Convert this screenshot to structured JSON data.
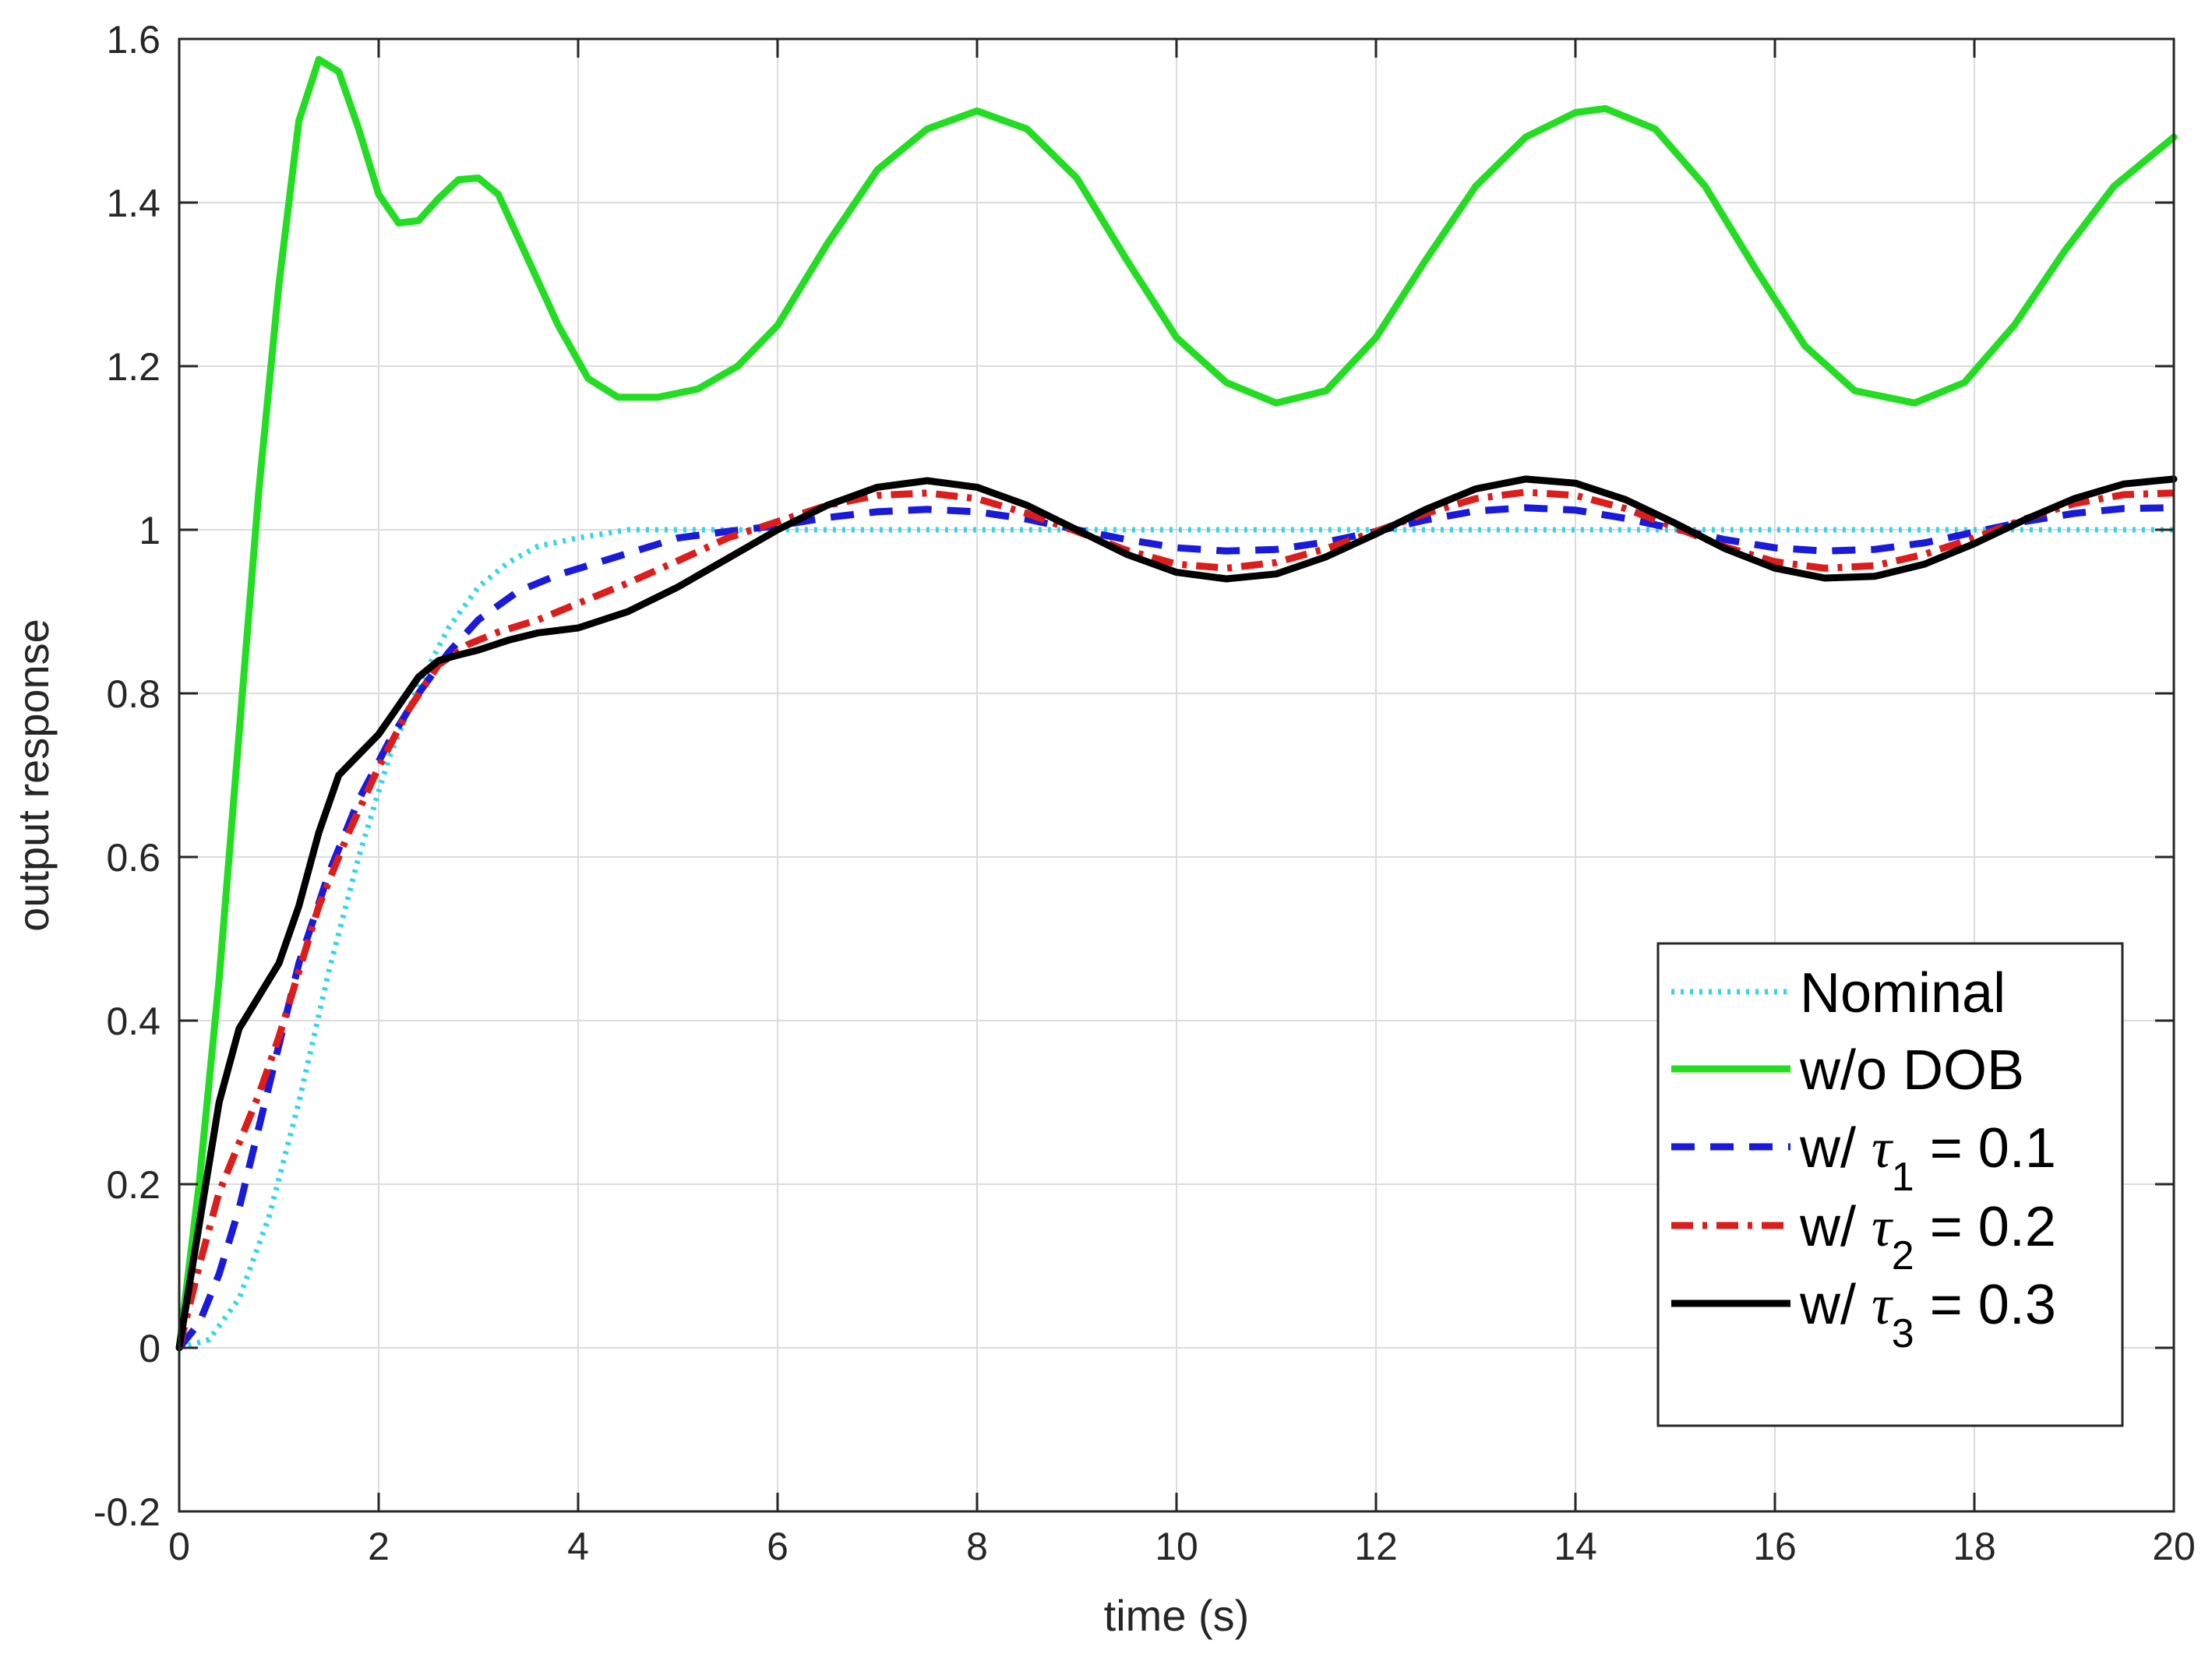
{
  "chart_data": {
    "type": "line",
    "title": "",
    "xlabel": "time (s)",
    "ylabel": "output response",
    "xlim": [
      0,
      20
    ],
    "ylim": [
      -0.2,
      1.6
    ],
    "grid": true,
    "x_ticks": [
      0,
      2,
      4,
      6,
      8,
      10,
      12,
      14,
      16,
      18,
      20
    ],
    "y_ticks": [
      -0.2,
      0,
      0.2,
      0.4,
      0.6,
      0.8,
      1,
      1.2,
      1.4,
      1.6
    ],
    "x_tick_labels": [
      "0",
      "2",
      "4",
      "6",
      "8",
      "10",
      "12",
      "14",
      "16",
      "18",
      "20"
    ],
    "y_tick_labels": [
      "-0.2",
      "0",
      "0.2",
      "0.4",
      "0.6",
      "0.8",
      "1",
      "1.2",
      "1.4",
      "1.6"
    ],
    "legend_position": "bottom-right",
    "series": [
      {
        "name": "Nominal",
        "legend": {
          "prefix": "Nominal",
          "greek": "",
          "sub": "",
          "suffix": ""
        },
        "color": "#33d6e8",
        "style": "dotted",
        "points": [
          [
            0,
            0
          ],
          [
            0.3,
            0.01
          ],
          [
            0.6,
            0.06
          ],
          [
            0.9,
            0.16
          ],
          [
            1.2,
            0.3
          ],
          [
            1.5,
            0.46
          ],
          [
            1.8,
            0.6
          ],
          [
            2.1,
            0.72
          ],
          [
            2.4,
            0.81
          ],
          [
            2.7,
            0.88
          ],
          [
            3.0,
            0.93
          ],
          [
            3.3,
            0.96
          ],
          [
            3.6,
            0.98
          ],
          [
            4.0,
            0.99
          ],
          [
            4.5,
            1.0
          ],
          [
            5.0,
            1.0
          ],
          [
            6.0,
            1.0
          ],
          [
            8.0,
            1.0
          ],
          [
            10.0,
            1.0
          ],
          [
            12.0,
            1.0
          ],
          [
            14.0,
            1.0
          ],
          [
            16.0,
            1.0
          ],
          [
            18.0,
            1.0
          ],
          [
            20.0,
            1.0
          ]
        ]
      },
      {
        "name": "w/o DOB",
        "legend": {
          "prefix": "w/o DOB",
          "greek": "",
          "sub": "",
          "suffix": ""
        },
        "color": "#22dd22",
        "style": "solid",
        "points": [
          [
            0,
            0
          ],
          [
            0.2,
            0.2
          ],
          [
            0.4,
            0.45
          ],
          [
            0.6,
            0.75
          ],
          [
            0.8,
            1.05
          ],
          [
            1.0,
            1.3
          ],
          [
            1.2,
            1.5
          ],
          [
            1.4,
            1.575
          ],
          [
            1.6,
            1.56
          ],
          [
            1.8,
            1.49
          ],
          [
            2.0,
            1.41
          ],
          [
            2.2,
            1.375
          ],
          [
            2.4,
            1.378
          ],
          [
            2.6,
            1.405
          ],
          [
            2.8,
            1.428
          ],
          [
            3.0,
            1.43
          ],
          [
            3.2,
            1.41
          ],
          [
            3.5,
            1.33
          ],
          [
            3.8,
            1.25
          ],
          [
            4.1,
            1.185
          ],
          [
            4.4,
            1.162
          ],
          [
            4.8,
            1.162
          ],
          [
            5.2,
            1.172
          ],
          [
            5.6,
            1.2
          ],
          [
            6.0,
            1.25
          ],
          [
            6.5,
            1.35
          ],
          [
            7.0,
            1.44
          ],
          [
            7.5,
            1.49
          ],
          [
            8.0,
            1.512
          ],
          [
            8.5,
            1.49
          ],
          [
            9.0,
            1.43
          ],
          [
            9.5,
            1.33
          ],
          [
            10.0,
            1.235
          ],
          [
            10.5,
            1.18
          ],
          [
            11.0,
            1.155
          ],
          [
            11.5,
            1.17
          ],
          [
            12.0,
            1.235
          ],
          [
            12.5,
            1.33
          ],
          [
            13.0,
            1.42
          ],
          [
            13.5,
            1.48
          ],
          [
            14.0,
            1.51
          ],
          [
            14.3,
            1.515
          ],
          [
            14.8,
            1.49
          ],
          [
            15.3,
            1.42
          ],
          [
            15.8,
            1.32
          ],
          [
            16.3,
            1.225
          ],
          [
            16.8,
            1.17
          ],
          [
            17.4,
            1.155
          ],
          [
            17.9,
            1.18
          ],
          [
            18.4,
            1.25
          ],
          [
            18.9,
            1.34
          ],
          [
            19.4,
            1.42
          ],
          [
            20.0,
            1.48
          ]
        ]
      },
      {
        "name": "w/ τ1 = 0.1",
        "legend": {
          "prefix": "w/ ",
          "greek": "τ",
          "sub": "1",
          "suffix": " = 0.1"
        },
        "color": "#1a1adb",
        "style": "dashed",
        "points": [
          [
            0,
            0
          ],
          [
            0.2,
            0.03
          ],
          [
            0.4,
            0.09
          ],
          [
            0.6,
            0.17
          ],
          [
            0.8,
            0.27
          ],
          [
            1.0,
            0.37
          ],
          [
            1.2,
            0.47
          ],
          [
            1.5,
            0.58
          ],
          [
            1.8,
            0.67
          ],
          [
            2.1,
            0.74
          ],
          [
            2.4,
            0.8
          ],
          [
            2.7,
            0.85
          ],
          [
            3.0,
            0.89
          ],
          [
            3.4,
            0.925
          ],
          [
            3.8,
            0.945
          ],
          [
            4.2,
            0.96
          ],
          [
            4.6,
            0.975
          ],
          [
            5.0,
            0.99
          ],
          [
            5.5,
            0.998
          ],
          [
            6.0,
            1.005
          ],
          [
            6.5,
            1.015
          ],
          [
            7.0,
            1.022
          ],
          [
            7.5,
            1.025
          ],
          [
            8.0,
            1.022
          ],
          [
            8.5,
            1.013
          ],
          [
            9.0,
            1.0
          ],
          [
            9.5,
            0.988
          ],
          [
            10.0,
            0.978
          ],
          [
            10.5,
            0.974
          ],
          [
            11.0,
            0.976
          ],
          [
            11.5,
            0.985
          ],
          [
            12.0,
            0.998
          ],
          [
            12.5,
            1.012
          ],
          [
            13.0,
            1.023
          ],
          [
            13.5,
            1.027
          ],
          [
            14.0,
            1.024
          ],
          [
            14.5,
            1.014
          ],
          [
            15.0,
            1.001
          ],
          [
            15.5,
            0.988
          ],
          [
            16.0,
            0.978
          ],
          [
            16.5,
            0.974
          ],
          [
            17.0,
            0.976
          ],
          [
            17.5,
            0.984
          ],
          [
            18.0,
            0.997
          ],
          [
            18.5,
            1.01
          ],
          [
            19.0,
            1.02
          ],
          [
            19.5,
            1.026
          ],
          [
            20.0,
            1.027
          ]
        ]
      },
      {
        "name": "w/ τ2 = 0.2",
        "legend": {
          "prefix": "w/ ",
          "greek": "τ",
          "sub": "2",
          "suffix": " = 0.2"
        },
        "color": "#dd1c1c",
        "style": "dashdot",
        "points": [
          [
            0,
            0
          ],
          [
            0.2,
            0.1
          ],
          [
            0.4,
            0.19
          ],
          [
            0.6,
            0.25
          ],
          [
            0.8,
            0.31
          ],
          [
            1.0,
            0.38
          ],
          [
            1.2,
            0.46
          ],
          [
            1.4,
            0.54
          ],
          [
            1.7,
            0.63
          ],
          [
            2.0,
            0.71
          ],
          [
            2.3,
            0.78
          ],
          [
            2.6,
            0.835
          ],
          [
            2.9,
            0.86
          ],
          [
            3.2,
            0.875
          ],
          [
            3.6,
            0.89
          ],
          [
            4.0,
            0.91
          ],
          [
            4.5,
            0.935
          ],
          [
            5.0,
            0.962
          ],
          [
            5.5,
            0.99
          ],
          [
            6.0,
            1.01
          ],
          [
            6.5,
            1.03
          ],
          [
            7.0,
            1.042
          ],
          [
            7.5,
            1.045
          ],
          [
            8.0,
            1.038
          ],
          [
            8.5,
            1.02
          ],
          [
            9.0,
            0.998
          ],
          [
            9.5,
            0.975
          ],
          [
            10.0,
            0.958
          ],
          [
            10.5,
            0.953
          ],
          [
            11.0,
            0.96
          ],
          [
            11.5,
            0.977
          ],
          [
            12.0,
            0.998
          ],
          [
            12.5,
            1.02
          ],
          [
            13.0,
            1.038
          ],
          [
            13.5,
            1.046
          ],
          [
            14.0,
            1.042
          ],
          [
            14.5,
            1.026
          ],
          [
            15.0,
            1.003
          ],
          [
            15.5,
            0.979
          ],
          [
            16.0,
            0.961
          ],
          [
            16.5,
            0.953
          ],
          [
            17.0,
            0.956
          ],
          [
            17.5,
            0.97
          ],
          [
            18.0,
            0.99
          ],
          [
            18.5,
            1.013
          ],
          [
            19.0,
            1.032
          ],
          [
            19.5,
            1.043
          ],
          [
            20.0,
            1.045
          ]
        ]
      },
      {
        "name": "w/ τ3 = 0.3",
        "legend": {
          "prefix": "w/ ",
          "greek": "τ",
          "sub": "3",
          "suffix": " = 0.3"
        },
        "color": "#000000",
        "style": "solid",
        "points": [
          [
            0,
            0
          ],
          [
            0.2,
            0.15
          ],
          [
            0.4,
            0.3
          ],
          [
            0.6,
            0.39
          ],
          [
            0.8,
            0.43
          ],
          [
            1.0,
            0.47
          ],
          [
            1.2,
            0.54
          ],
          [
            1.4,
            0.63
          ],
          [
            1.6,
            0.7
          ],
          [
            1.8,
            0.725
          ],
          [
            2.0,
            0.75
          ],
          [
            2.2,
            0.785
          ],
          [
            2.4,
            0.82
          ],
          [
            2.6,
            0.84
          ],
          [
            2.8,
            0.847
          ],
          [
            3.0,
            0.853
          ],
          [
            3.3,
            0.865
          ],
          [
            3.6,
            0.874
          ],
          [
            4.0,
            0.88
          ],
          [
            4.5,
            0.9
          ],
          [
            5.0,
            0.93
          ],
          [
            5.5,
            0.965
          ],
          [
            6.0,
            1.0
          ],
          [
            6.5,
            1.03
          ],
          [
            7.0,
            1.052
          ],
          [
            7.5,
            1.06
          ],
          [
            8.0,
            1.052
          ],
          [
            8.5,
            1.03
          ],
          [
            9.0,
            1.0
          ],
          [
            9.5,
            0.97
          ],
          [
            10.0,
            0.948
          ],
          [
            10.5,
            0.94
          ],
          [
            11.0,
            0.946
          ],
          [
            11.5,
            0.967
          ],
          [
            12.0,
            0.995
          ],
          [
            12.5,
            1.025
          ],
          [
            13.0,
            1.05
          ],
          [
            13.5,
            1.062
          ],
          [
            14.0,
            1.057
          ],
          [
            14.5,
            1.037
          ],
          [
            15.0,
            1.008
          ],
          [
            15.5,
            0.977
          ],
          [
            16.0,
            0.953
          ],
          [
            16.5,
            0.941
          ],
          [
            17.0,
            0.943
          ],
          [
            17.5,
            0.958
          ],
          [
            18.0,
            0.983
          ],
          [
            18.5,
            1.012
          ],
          [
            19.0,
            1.038
          ],
          [
            19.5,
            1.056
          ],
          [
            20.0,
            1.062
          ]
        ]
      }
    ]
  }
}
